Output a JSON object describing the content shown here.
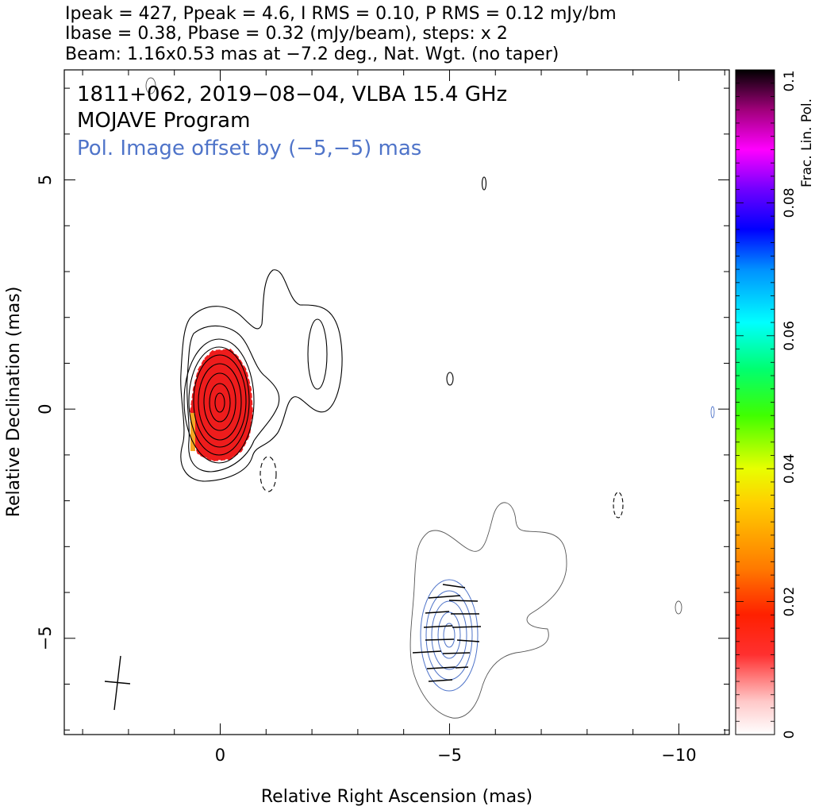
{
  "header": {
    "line1": "Ipeak = 427, Ppeak = 4.6, I RMS = 0.10, P RMS = 0.12 mJy/bm",
    "line2": "Ibase = 0.38, Pbase = 0.32 (mJy/beam), steps: x 2",
    "line3": "Beam: 1.16x0.53 mas at −7.2 deg., Nat. Wgt. (no taper)"
  },
  "annotations": {
    "source": "1811+062, 2019−08−04, VLBA 15.4 GHz",
    "program": "MOJAVE Program",
    "offset": "Pol. Image offset by (−5,−5) mas"
  },
  "chart_data": {
    "type": "contour",
    "xlabel": "Relative Right Ascension (mas)",
    "ylabel": "Relative Declination (mas)",
    "xlim": [
      3.4,
      -11.1
    ],
    "ylim": [
      -7.1,
      7.4
    ],
    "x_ticks": [
      {
        "value": 0,
        "label": "0"
      },
      {
        "value": -5,
        "label": "−5"
      },
      {
        "value": -10,
        "label": "−10"
      }
    ],
    "y_ticks": [
      {
        "value": 5,
        "label": "5"
      },
      {
        "value": 0,
        "label": "0"
      },
      {
        "value": -5,
        "label": "−5"
      }
    ],
    "colorbar": {
      "label": "Frac. Lin. Pol.",
      "range": [
        0,
        0.1
      ],
      "ticks": [
        {
          "value": 0,
          "label": "0"
        },
        {
          "value": 0.02,
          "label": "0.02"
        },
        {
          "value": 0.04,
          "label": "0.04"
        },
        {
          "value": 0.06,
          "label": "0.06"
        },
        {
          "value": 0.08,
          "label": "0.08"
        },
        {
          "value": 0.1,
          "label": "0.1"
        }
      ]
    },
    "total_intensity_core_center": [
      0,
      0
    ],
    "polarization_offset": [
      -5,
      -5
    ],
    "beam": {
      "major_mas": 1.16,
      "minor_mas": 0.53,
      "pa_deg": -7.2
    }
  },
  "colors": {
    "contour": "#000000",
    "pol_contour": "#4f74c9",
    "offset_contour": "#555555",
    "frac_pol_fill": "#ee1c1c"
  }
}
